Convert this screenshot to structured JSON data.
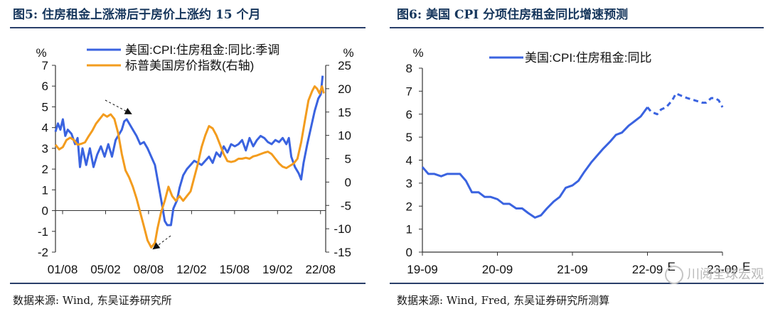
{
  "fig5": {
    "title": "图5: 住房租金上涨滞后于房价上涨约 15 个月",
    "source": "数据来源: Wind, 东吴证券研究所",
    "chart_data": {
      "type": "line",
      "title": "图5: 住房租金上涨滞后于房价上涨约 15 个月",
      "left_axis": {
        "unit": "%",
        "range": [
          -2,
          7
        ],
        "ticks": [
          7,
          6,
          5,
          4,
          3,
          2,
          1,
          0,
          -1,
          -2
        ]
      },
      "right_axis": {
        "unit": "%",
        "range": [
          -15,
          25
        ],
        "ticks": [
          25,
          20,
          15,
          10,
          5,
          0,
          -5,
          -10,
          -15
        ]
      },
      "x_range": [
        2001.0,
        2023.0
      ],
      "x_ticks": [
        {
          "label": "01/08",
          "t": 2001.58
        },
        {
          "label": "05/02",
          "t": 2005.08
        },
        {
          "label": "08/08",
          "t": 2008.58
        },
        {
          "label": "12/02",
          "t": 2012.08
        },
        {
          "label": "15/08",
          "t": 2015.58
        },
        {
          "label": "19/02",
          "t": 2019.08
        },
        {
          "label": "22/08",
          "t": 2022.58
        }
      ],
      "series": [
        {
          "name": "美国:CPI:住房租金:同比:季调",
          "axis": "left",
          "color": "#3a63e0",
          "points": [
            [
              2001.0,
              3.8
            ],
            [
              2001.2,
              4.2
            ],
            [
              2001.4,
              3.9
            ],
            [
              2001.6,
              4.4
            ],
            [
              2001.8,
              3.6
            ],
            [
              2002.0,
              3.9
            ],
            [
              2002.3,
              3.7
            ],
            [
              2002.6,
              3.2
            ],
            [
              2002.8,
              3.5
            ],
            [
              2003.0,
              2.1
            ],
            [
              2003.2,
              3.0
            ],
            [
              2003.5,
              2.2
            ],
            [
              2003.8,
              3.0
            ],
            [
              2004.1,
              2.1
            ],
            [
              2004.4,
              2.7
            ],
            [
              2004.7,
              3.1
            ],
            [
              2005.0,
              2.6
            ],
            [
              2005.3,
              3.2
            ],
            [
              2005.6,
              2.6
            ],
            [
              2005.9,
              3.4
            ],
            [
              2006.1,
              3.6
            ],
            [
              2006.4,
              3.9
            ],
            [
              2006.6,
              4.3
            ],
            [
              2006.8,
              4.4
            ],
            [
              2007.0,
              4.2
            ],
            [
              2007.3,
              3.9
            ],
            [
              2007.6,
              3.6
            ],
            [
              2007.9,
              3.2
            ],
            [
              2008.2,
              3.3
            ],
            [
              2008.5,
              3.0
            ],
            [
              2008.8,
              2.6
            ],
            [
              2009.1,
              2.2
            ],
            [
              2009.4,
              1.2
            ],
            [
              2009.7,
              0.2
            ],
            [
              2009.9,
              -0.5
            ],
            [
              2010.1,
              -0.7
            ],
            [
              2010.4,
              -0.7
            ],
            [
              2010.6,
              0.1
            ],
            [
              2010.9,
              0.5
            ],
            [
              2011.1,
              1.1
            ],
            [
              2011.4,
              1.7
            ],
            [
              2011.7,
              2.0
            ],
            [
              2012.0,
              2.2
            ],
            [
              2012.3,
              2.4
            ],
            [
              2012.6,
              2.3
            ],
            [
              2012.9,
              2.2
            ],
            [
              2013.2,
              2.4
            ],
            [
              2013.5,
              2.6
            ],
            [
              2013.8,
              2.3
            ],
            [
              2014.1,
              2.8
            ],
            [
              2014.4,
              2.6
            ],
            [
              2014.7,
              3.1
            ],
            [
              2015.0,
              2.8
            ],
            [
              2015.3,
              3.2
            ],
            [
              2015.6,
              3.1
            ],
            [
              2015.9,
              3.2
            ],
            [
              2016.2,
              3.4
            ],
            [
              2016.5,
              2.9
            ],
            [
              2016.8,
              3.5
            ],
            [
              2017.1,
              3.1
            ],
            [
              2017.4,
              3.4
            ],
            [
              2017.7,
              3.6
            ],
            [
              2018.0,
              3.5
            ],
            [
              2018.3,
              3.3
            ],
            [
              2018.6,
              3.2
            ],
            [
              2018.9,
              3.4
            ],
            [
              2019.2,
              3.3
            ],
            [
              2019.5,
              3.5
            ],
            [
              2019.8,
              3.2
            ],
            [
              2020.0,
              3.5
            ],
            [
              2020.2,
              2.6
            ],
            [
              2020.5,
              2.1
            ],
            [
              2020.8,
              1.8
            ],
            [
              2021.0,
              1.5
            ],
            [
              2021.2,
              2.3
            ],
            [
              2021.5,
              3.2
            ],
            [
              2021.8,
              4.0
            ],
            [
              2022.1,
              4.8
            ],
            [
              2022.4,
              5.4
            ],
            [
              2022.6,
              5.6
            ],
            [
              2022.75,
              6.5
            ]
          ]
        },
        {
          "name": "标普美国房价指数(右轴)",
          "axis": "right",
          "color": "#f39c1e",
          "points": [
            [
              2001.0,
              8.0
            ],
            [
              2001.3,
              7.0
            ],
            [
              2001.6,
              7.5
            ],
            [
              2001.9,
              9.0
            ],
            [
              2002.2,
              9.5
            ],
            [
              2002.5,
              9.0
            ],
            [
              2002.8,
              8.0
            ],
            [
              2003.1,
              8.2
            ],
            [
              2003.4,
              8.5
            ],
            [
              2003.7,
              9.8
            ],
            [
              2004.0,
              11.0
            ],
            [
              2004.3,
              12.5
            ],
            [
              2004.6,
              13.5
            ],
            [
              2004.9,
              14.5
            ],
            [
              2005.2,
              14.0
            ],
            [
              2005.5,
              14.5
            ],
            [
              2005.8,
              13.5
            ],
            [
              2006.1,
              10.5
            ],
            [
              2006.4,
              6.0
            ],
            [
              2006.7,
              2.5
            ],
            [
              2007.0,
              1.0
            ],
            [
              2007.3,
              -1.0
            ],
            [
              2007.6,
              -3.5
            ],
            [
              2007.9,
              -6.5
            ],
            [
              2008.2,
              -9.5
            ],
            [
              2008.5,
              -12.5
            ],
            [
              2008.8,
              -14.0
            ],
            [
              2009.1,
              -13.0
            ],
            [
              2009.3,
              -10.0
            ],
            [
              2009.6,
              -6.5
            ],
            [
              2009.9,
              -4.0
            ],
            [
              2010.2,
              -1.0
            ],
            [
              2010.5,
              -3.0
            ],
            [
              2010.8,
              -4.0
            ],
            [
              2011.1,
              -3.0
            ],
            [
              2011.4,
              -4.0
            ],
            [
              2011.7,
              -3.0
            ],
            [
              2012.0,
              -2.0
            ],
            [
              2012.3,
              1.0
            ],
            [
              2012.6,
              4.0
            ],
            [
              2012.9,
              7.5
            ],
            [
              2013.2,
              10.0
            ],
            [
              2013.5,
              12.0
            ],
            [
              2013.8,
              11.5
            ],
            [
              2014.1,
              10.0
            ],
            [
              2014.4,
              8.0
            ],
            [
              2014.7,
              6.0
            ],
            [
              2015.0,
              4.5
            ],
            [
              2015.3,
              4.3
            ],
            [
              2015.6,
              4.5
            ],
            [
              2015.9,
              5.0
            ],
            [
              2016.2,
              5.0
            ],
            [
              2016.5,
              5.2
            ],
            [
              2016.8,
              5.0
            ],
            [
              2017.1,
              5.5
            ],
            [
              2017.4,
              5.7
            ],
            [
              2017.7,
              6.0
            ],
            [
              2018.0,
              6.3
            ],
            [
              2018.3,
              6.5
            ],
            [
              2018.6,
              6.0
            ],
            [
              2018.9,
              5.0
            ],
            [
              2019.2,
              4.0
            ],
            [
              2019.5,
              3.3
            ],
            [
              2019.8,
              3.0
            ],
            [
              2020.1,
              3.5
            ],
            [
              2020.4,
              4.0
            ],
            [
              2020.7,
              5.0
            ],
            [
              2021.0,
              8.5
            ],
            [
              2021.3,
              13.0
            ],
            [
              2021.6,
              17.5
            ],
            [
              2021.9,
              19.5
            ],
            [
              2022.1,
              20.5
            ],
            [
              2022.3,
              20.0
            ],
            [
              2022.5,
              19.0
            ],
            [
              2022.7,
              20.5
            ],
            [
              2022.85,
              19.0
            ]
          ]
        }
      ],
      "legend": [
        "美国:CPI:住房租金:同比:季调",
        "标普美国房价指数(右轴)"
      ]
    }
  },
  "fig6": {
    "title": "图6: 美国 CPI 分项住房租金同比增速预测",
    "source": "数据来源: Wind, Fred, 东吴证券研究所测算",
    "watermark": "川阅全球宏观",
    "chart_data": {
      "type": "line",
      "title": "图6: 美国 CPI 分项住房租金同比增速预测",
      "y_axis": {
        "unit": "%",
        "range": [
          0,
          8
        ],
        "ticks": [
          8,
          7,
          6,
          5,
          4,
          3,
          2,
          1,
          0
        ]
      },
      "x_range": [
        2019.67,
        2023.67
      ],
      "x_ticks": [
        {
          "label": "19-09",
          "t": 2019.67
        },
        {
          "label": "20-09",
          "t": 2020.67
        },
        {
          "label": "21-09",
          "t": 2021.67
        },
        {
          "label": "22-09",
          "t": 2022.67
        },
        {
          "label": "23-09",
          "t": 2023.67
        }
      ],
      "x_tick_suffix": "E",
      "legend": [
        "美国:CPI:住房租金:同比"
      ],
      "series": [
        {
          "name": "美国:CPI:住房租金:同比",
          "style": "solid",
          "color": "#3a63e0",
          "points": [
            [
              2019.67,
              3.7
            ],
            [
              2019.75,
              3.4
            ],
            [
              2019.83,
              3.4
            ],
            [
              2019.92,
              3.3
            ],
            [
              2020.0,
              3.4
            ],
            [
              2020.08,
              3.4
            ],
            [
              2020.17,
              3.4
            ],
            [
              2020.25,
              3.1
            ],
            [
              2020.33,
              2.6
            ],
            [
              2020.42,
              2.6
            ],
            [
              2020.5,
              2.4
            ],
            [
              2020.58,
              2.4
            ],
            [
              2020.67,
              2.3
            ],
            [
              2020.75,
              2.1
            ],
            [
              2020.83,
              2.1
            ],
            [
              2020.92,
              1.9
            ],
            [
              2021.0,
              1.9
            ],
            [
              2021.08,
              1.7
            ],
            [
              2021.17,
              1.5
            ],
            [
              2021.25,
              1.6
            ],
            [
              2021.33,
              1.9
            ],
            [
              2021.42,
              2.2
            ],
            [
              2021.5,
              2.4
            ],
            [
              2021.58,
              2.8
            ],
            [
              2021.67,
              2.9
            ],
            [
              2021.75,
              3.1
            ],
            [
              2021.83,
              3.5
            ],
            [
              2021.92,
              3.9
            ],
            [
              2022.0,
              4.2
            ],
            [
              2022.08,
              4.5
            ],
            [
              2022.17,
              4.8
            ],
            [
              2022.25,
              5.1
            ],
            [
              2022.33,
              5.2
            ],
            [
              2022.42,
              5.5
            ],
            [
              2022.5,
              5.7
            ],
            [
              2022.58,
              5.9
            ],
            [
              2022.67,
              6.3
            ]
          ]
        },
        {
          "name": "预测",
          "style": "dashed",
          "color": "#3a63e0",
          "points": [
            [
              2022.67,
              6.3
            ],
            [
              2022.72,
              6.1
            ],
            [
              2022.8,
              6.0
            ],
            [
              2022.85,
              6.2
            ],
            [
              2022.92,
              6.3
            ],
            [
              2023.0,
              6.6
            ],
            [
              2023.05,
              6.9
            ],
            [
              2023.12,
              6.8
            ],
            [
              2023.2,
              6.7
            ],
            [
              2023.3,
              6.6
            ],
            [
              2023.4,
              6.5
            ],
            [
              2023.45,
              6.5
            ],
            [
              2023.52,
              6.7
            ],
            [
              2023.57,
              6.7
            ],
            [
              2023.62,
              6.6
            ],
            [
              2023.67,
              6.3
            ]
          ]
        }
      ]
    }
  }
}
